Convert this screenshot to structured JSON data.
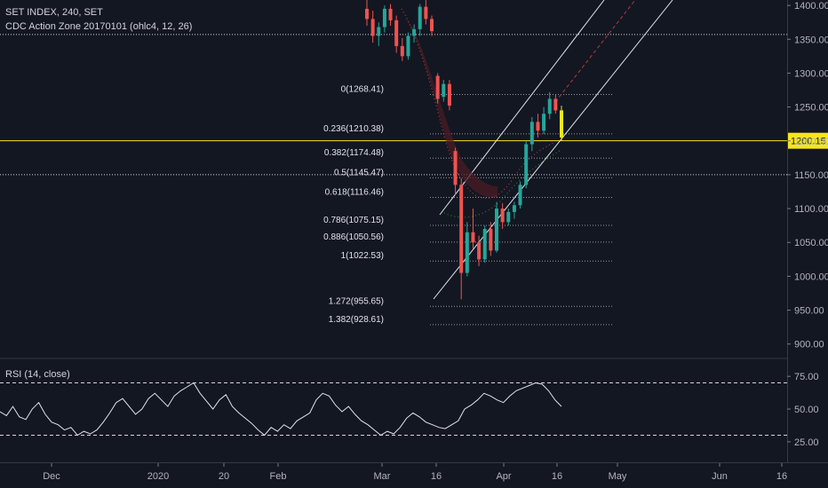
{
  "header": {
    "symbol": "SET INDEX, 240, SET",
    "indicator": "CDC Action Zone 20170101 (ohlc4, 12, 26)"
  },
  "rsi_panel": {
    "label": "RSI (14, close)"
  },
  "colors": {
    "background": "#131722",
    "up": "#26a69a",
    "down": "#ef5350",
    "price_line": "#f5e61a",
    "channel": "#e0e3eb",
    "fib": "#787b86",
    "rsi": "#e0e3eb"
  },
  "chart_data": [
    {
      "type": "candlestick",
      "title": "SET INDEX, 240, SET",
      "y_ticks": [
        900,
        950,
        1000,
        1050,
        1100,
        1150,
        1200,
        1250,
        1300,
        1350,
        1400
      ],
      "y_tick_labels": [
        "900.00",
        "950.00",
        "1000.00",
        "1050.00",
        "1100.00",
        "1150.00",
        "1200.00",
        "1250.00",
        "1300.00",
        "1350.00",
        "1400.00"
      ],
      "ylim": [
        880,
        1408
      ],
      "x_tick_labels": [
        "Dec",
        "2020",
        "20",
        "Feb",
        "Mar",
        "16",
        "Apr",
        "16",
        "May",
        "Jun",
        "16"
      ],
      "last_price": 1200.15,
      "last_price_label": "1200.15",
      "reference_lines": [
        1357,
        1150
      ],
      "fibonacci": [
        {
          "ratio": "0",
          "value": 1268.41,
          "label": "0(1268.41)"
        },
        {
          "ratio": "0.236",
          "value": 1210.38,
          "label": "0.236(1210.38)"
        },
        {
          "ratio": "0.382",
          "value": 1174.48,
          "label": "0.382(1174.48)"
        },
        {
          "ratio": "0.5",
          "value": 1145.47,
          "label": "0.5(1145.47)"
        },
        {
          "ratio": "0.618",
          "value": 1116.46,
          "label": "0.618(1116.46)"
        },
        {
          "ratio": "0.786",
          "value": 1075.15,
          "label": "0.786(1075.15)"
        },
        {
          "ratio": "0.886",
          "value": 1050.56,
          "label": "0.886(1050.56)"
        },
        {
          "ratio": "1",
          "value": 1022.53,
          "label": "1(1022.53)"
        },
        {
          "ratio": "1.272",
          "value": 955.65,
          "label": "1.272(955.65)"
        },
        {
          "ratio": "1.382",
          "value": 928.61,
          "label": "1.382(928.61)"
        }
      ],
      "candles": [
        {
          "date": "2020-02-28",
          "o": 1395,
          "h": 1410,
          "l": 1370,
          "c": 1380
        },
        {
          "date": "2020-03-02",
          "o": 1380,
          "h": 1392,
          "l": 1345,
          "c": 1355
        },
        {
          "date": "2020-03-03",
          "o": 1355,
          "h": 1375,
          "l": 1340,
          "c": 1368
        },
        {
          "date": "2020-03-04",
          "o": 1368,
          "h": 1400,
          "l": 1360,
          "c": 1395
        },
        {
          "date": "2020-03-05",
          "o": 1395,
          "h": 1402,
          "l": 1370,
          "c": 1378
        },
        {
          "date": "2020-03-06",
          "o": 1378,
          "h": 1385,
          "l": 1330,
          "c": 1340
        },
        {
          "date": "2020-03-09",
          "o": 1340,
          "h": 1352,
          "l": 1318,
          "c": 1325
        },
        {
          "date": "2020-03-10",
          "o": 1325,
          "h": 1360,
          "l": 1320,
          "c": 1355
        },
        {
          "date": "2020-03-11",
          "o": 1355,
          "h": 1372,
          "l": 1345,
          "c": 1365
        },
        {
          "date": "2020-03-12",
          "o": 1365,
          "h": 1402,
          "l": 1355,
          "c": 1398
        },
        {
          "date": "2020-03-13",
          "o": 1398,
          "h": 1408,
          "l": 1372,
          "c": 1380
        },
        {
          "date": "2020-03-16",
          "o": 1380,
          "h": 1385,
          "l": 1355,
          "c": 1362
        },
        {
          "date": "2020-03-17",
          "o": 1296,
          "h": 1300,
          "l": 1255,
          "c": 1262
        },
        {
          "date": "2020-03-18",
          "o": 1265,
          "h": 1290,
          "l": 1258,
          "c": 1284
        },
        {
          "date": "2020-03-19",
          "o": 1284,
          "h": 1290,
          "l": 1245,
          "c": 1252
        },
        {
          "date": "2020-03-20",
          "o": 1185,
          "h": 1190,
          "l": 1120,
          "c": 1135
        },
        {
          "date": "2020-03-23",
          "o": 1135,
          "h": 1145,
          "l": 966,
          "c": 1005
        },
        {
          "date": "2020-03-24",
          "o": 1005,
          "h": 1080,
          "l": 1000,
          "c": 1065
        },
        {
          "date": "2020-03-25",
          "o": 1065,
          "h": 1100,
          "l": 1040,
          "c": 1050
        },
        {
          "date": "2020-03-26",
          "o": 1050,
          "h": 1060,
          "l": 1015,
          "c": 1025
        },
        {
          "date": "2020-03-27",
          "o": 1025,
          "h": 1075,
          "l": 1020,
          "c": 1070
        },
        {
          "date": "2020-03-30",
          "o": 1070,
          "h": 1080,
          "l": 1030,
          "c": 1038
        },
        {
          "date": "2020-03-31",
          "o": 1038,
          "h": 1110,
          "l": 1035,
          "c": 1100
        },
        {
          "date": "2020-04-01",
          "o": 1100,
          "h": 1108,
          "l": 1070,
          "c": 1080
        },
        {
          "date": "2020-04-02",
          "o": 1080,
          "h": 1100,
          "l": 1075,
          "c": 1095
        },
        {
          "date": "2020-04-03",
          "o": 1095,
          "h": 1110,
          "l": 1085,
          "c": 1105
        },
        {
          "date": "2020-04-07",
          "o": 1105,
          "h": 1140,
          "l": 1100,
          "c": 1135
        },
        {
          "date": "2020-04-08",
          "o": 1135,
          "h": 1200,
          "l": 1130,
          "c": 1195
        },
        {
          "date": "2020-04-09",
          "o": 1195,
          "h": 1235,
          "l": 1185,
          "c": 1228
        },
        {
          "date": "2020-04-10",
          "o": 1228,
          "h": 1240,
          "l": 1205,
          "c": 1215
        },
        {
          "date": "2020-04-14",
          "o": 1215,
          "h": 1250,
          "l": 1210,
          "c": 1240
        },
        {
          "date": "2020-04-15",
          "o": 1240,
          "h": 1272,
          "l": 1232,
          "c": 1262
        },
        {
          "date": "2020-04-16",
          "o": 1262,
          "h": 1268,
          "l": 1240,
          "c": 1245
        },
        {
          "date": "2020-04-17",
          "o": 1245,
          "h": 1252,
          "l": 1200,
          "c": 1205
        }
      ],
      "rsi": {
        "ticks": [
          25,
          50,
          75
        ],
        "tick_labels": [
          "25.00",
          "50.00",
          "75.00"
        ],
        "bands": [
          30,
          70
        ],
        "ylim": [
          10,
          88
        ],
        "values": [
          48,
          45,
          52,
          44,
          42,
          50,
          55,
          46,
          40,
          38,
          34,
          36,
          30,
          33,
          31,
          34,
          40,
          47,
          55,
          58,
          52,
          46,
          50,
          58,
          62,
          57,
          52,
          60,
          64,
          67,
          70,
          62,
          56,
          50,
          57,
          61,
          52,
          47,
          43,
          39,
          34,
          30,
          36,
          33,
          38,
          35,
          41,
          44,
          47,
          57,
          62,
          60,
          53,
          48,
          52,
          46,
          41,
          38,
          34,
          30,
          33,
          31,
          36,
          43,
          47,
          44,
          40,
          38,
          36,
          35,
          38,
          41,
          50,
          53,
          57,
          62,
          60,
          57,
          55,
          60,
          64,
          66,
          68,
          70,
          69,
          64,
          57,
          52
        ]
      }
    }
  ]
}
